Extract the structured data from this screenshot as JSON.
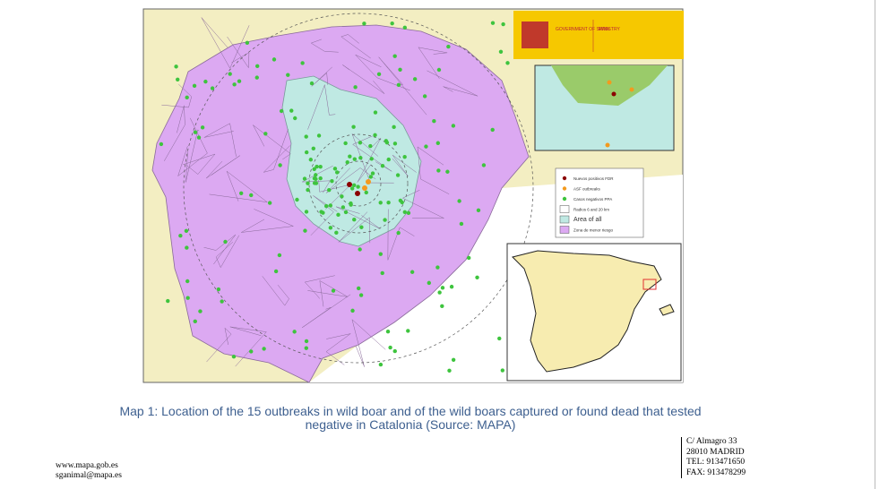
{
  "header": {
    "government": "GOVERNMENT OF SPAIN",
    "ministry": "MINISTRY"
  },
  "legend": {
    "items": [
      "Nuevos positivos FDR",
      "ASF outbreaks",
      "Casos negativos PPA",
      "Radios 6 and 20 km",
      "Area of all",
      "Zona de menor riesgo"
    ]
  },
  "caption": {
    "lines": [
      "Map 1: Location of the 15 outbreaks in wild boar and of the wild boars captured or found dead that tested",
      "negative in Catalonia (Source: MAPA)"
    ]
  },
  "footer": {
    "website": "www.mapa.gob.es",
    "email": "sganimal@mapa.es"
  },
  "address": {
    "lines": [
      "C/ Almagro 33",
      "28010 MADRID",
      "TEL: 913471650",
      "FAX: 913478299"
    ]
  }
}
